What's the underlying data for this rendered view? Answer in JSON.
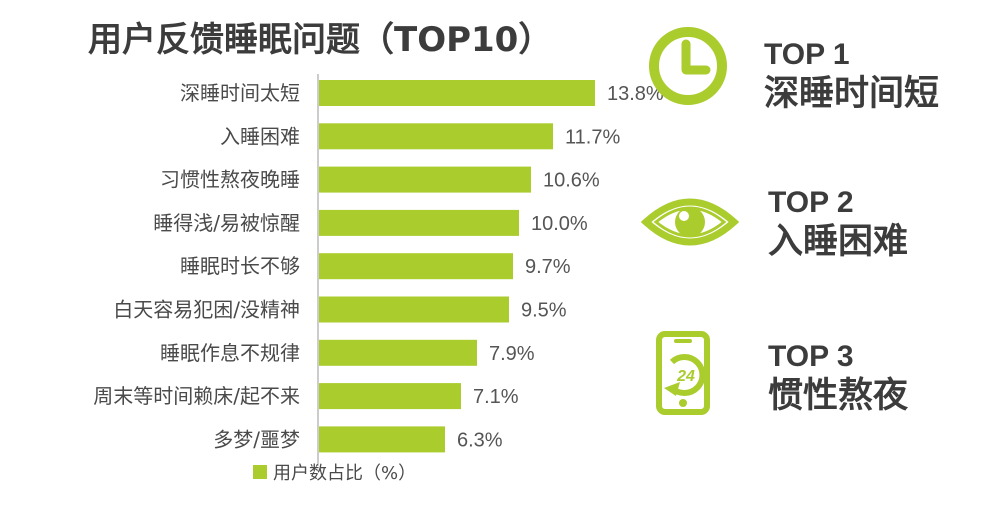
{
  "title": "用户反馈睡眠问题（TOP10）",
  "legend": "用户数占比（%）",
  "colors": {
    "bar": "#aacc2d",
    "icon": "#aacc2d",
    "axis": "#999999"
  },
  "chart_data": {
    "type": "bar",
    "orientation": "horizontal",
    "categories": [
      "深睡时间太短",
      "入睡困难",
      "习惯性熬夜晚睡",
      "睡得浅/易被惊醒",
      "睡眠时长不够",
      "白天容易犯困/没精神",
      "睡眠作息不规律",
      "周末等时间赖床/起不来",
      "多梦/噩梦"
    ],
    "values": [
      13.8,
      11.7,
      10.6,
      10.0,
      9.7,
      9.5,
      7.9,
      7.1,
      6.3
    ],
    "value_labels": [
      "13.8%",
      "11.7%",
      "10.6%",
      "10.0%",
      "9.7%",
      "9.5%",
      "7.9%",
      "7.1%",
      "6.3%"
    ],
    "series": [
      {
        "name": "用户数占比（%）"
      }
    ],
    "xlim": [
      0,
      20
    ],
    "legend_position": "bottom",
    "grid": false
  },
  "top_list": [
    {
      "rank": "TOP 1",
      "label": "深睡时间短",
      "icon": "clock-icon"
    },
    {
      "rank": "TOP 2",
      "label": "入睡困难",
      "icon": "eye-icon"
    },
    {
      "rank": "TOP 3",
      "label": "惯性熬夜",
      "icon": "phone-24-icon"
    }
  ]
}
